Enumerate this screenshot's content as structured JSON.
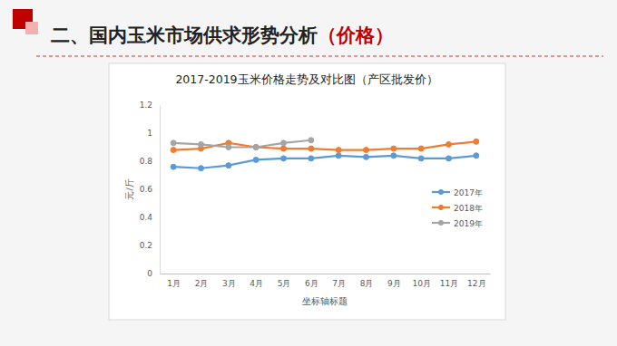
{
  "header": {
    "title": "二、国内玉米市场供求形势分析",
    "title_highlight": "（价格）"
  },
  "chart_data": {
    "type": "line",
    "title": "2017-2019玉米价格走势及对比图（产区批发价）",
    "x_label": "坐标轴标题",
    "y_label": "元/斤",
    "categories": [
      "1月",
      "2月",
      "3月",
      "4月",
      "5月",
      "6月",
      "7月",
      "8月",
      "9月",
      "10月",
      "11月",
      "12月"
    ],
    "series": [
      {
        "name": "2017年",
        "color": "#5b9bd5",
        "values": [
          0.76,
          0.75,
          0.77,
          0.81,
          0.82,
          0.82,
          0.84,
          0.83,
          0.84,
          0.82,
          0.82,
          0.84
        ]
      },
      {
        "name": "2018年",
        "color": "#ed7d31",
        "values": [
          0.88,
          0.89,
          0.93,
          0.9,
          0.89,
          0.89,
          0.88,
          0.88,
          0.89,
          0.89,
          0.92,
          0.94
        ]
      },
      {
        "name": "2019年",
        "color": "#a5a5a5",
        "values": [
          0.93,
          0.92,
          0.9,
          0.9,
          0.93,
          0.95,
          null,
          null,
          null,
          null,
          null,
          null
        ]
      }
    ],
    "ylim": [
      0,
      1.2
    ],
    "yticks": [
      0,
      0.2,
      0.4,
      0.6,
      0.8,
      1,
      1.2
    ],
    "grid": false,
    "legend": "right",
    "marker": "circle"
  }
}
